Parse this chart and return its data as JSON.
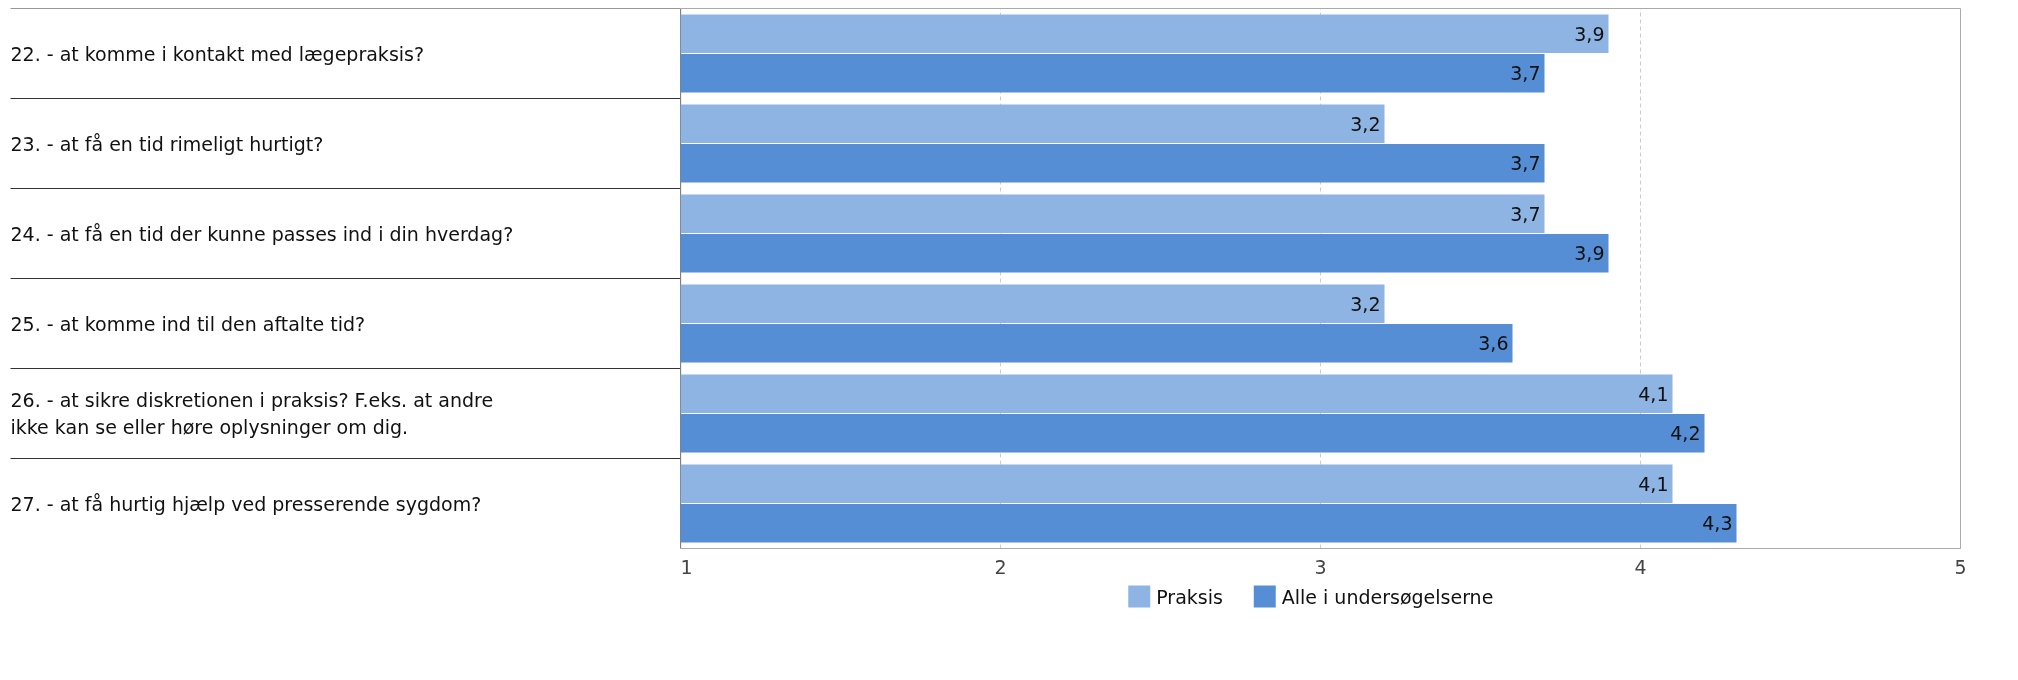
{
  "chart_data": {
    "type": "bar",
    "orientation": "horizontal",
    "categories": [
      "22. - at komme i kontakt med lægepraksis?",
      "23. - at få en tid rimeligt hurtigt?",
      "24. - at få en tid der kunne passes ind i din hverdag?",
      "25. - at komme ind til den aftalte tid?",
      "26. - at sikre diskretionen i praksis? F.eks. at andre ikke kan se eller høre oplysninger om dig.",
      "27. - at få hurtig hjælp ved presserende sygdom?"
    ],
    "series": [
      {
        "name": "Praksis",
        "color": "#8db4e3",
        "values": [
          3.9,
          3.2,
          3.7,
          3.2,
          4.1,
          4.1
        ],
        "value_labels": [
          "3,9",
          "3,2",
          "3,7",
          "3,2",
          "4,1",
          "4,1"
        ]
      },
      {
        "name": "Alle i undersøgelserne",
        "color": "#558ed5",
        "values": [
          3.7,
          3.7,
          3.9,
          3.6,
          4.2,
          4.3
        ],
        "value_labels": [
          "3,7",
          "3,7",
          "3,9",
          "3,6",
          "4,2",
          "4,3"
        ]
      }
    ],
    "xlim": [
      1,
      5
    ],
    "xticks": [
      1,
      2,
      3,
      4,
      5
    ],
    "grid": "x",
    "legend": "bottom"
  }
}
